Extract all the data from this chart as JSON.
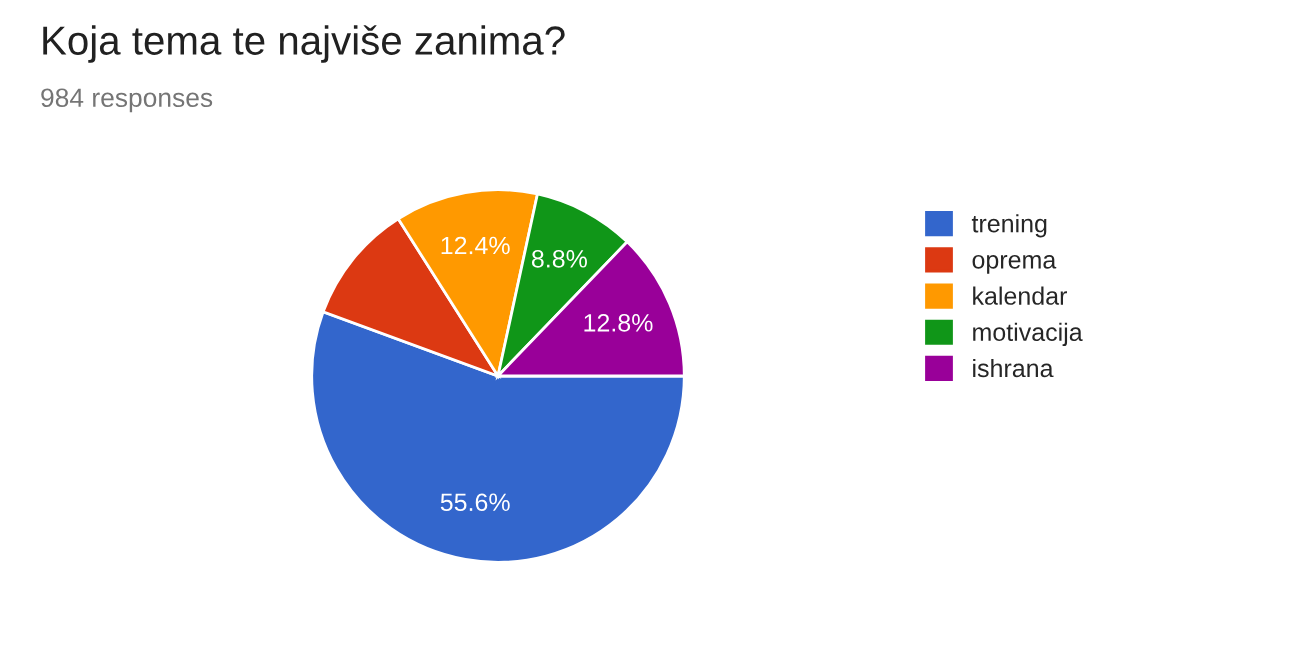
{
  "chart_data": {
    "type": "pie",
    "title": "Koja tema te najviše zanima?",
    "subtitle": "984 responses",
    "categories": [
      "trening",
      "oprema",
      "kalendar",
      "motivacija",
      "ishrana"
    ],
    "values": [
      55.6,
      10.4,
      12.4,
      8.8,
      12.8
    ],
    "value_labels": [
      "55.6%",
      null,
      "12.4%",
      "8.8%",
      "12.8%"
    ],
    "colors": [
      "#3366cc",
      "#dc3912",
      "#ff9900",
      "#109618",
      "#990099"
    ],
    "legend": "right"
  }
}
